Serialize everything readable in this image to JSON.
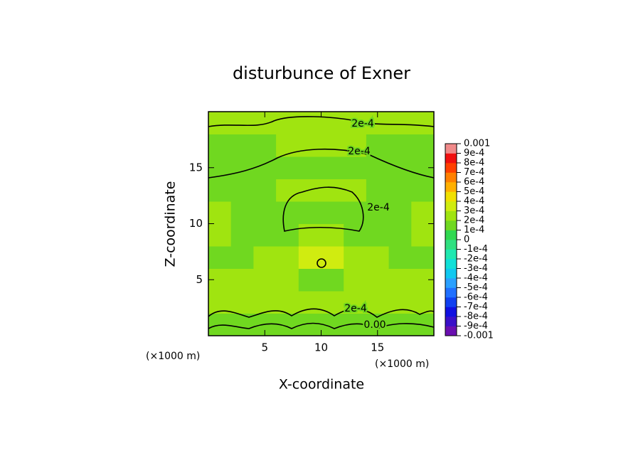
{
  "chart_data": {
    "type": "contour",
    "title": "disturbunce of Exner",
    "xlabel": "X-coordinate",
    "ylabel": "Z-coordinate",
    "xunit": "(×1000 m)",
    "yunit": "(×1000 m)",
    "xlim": [
      0,
      20
    ],
    "ylim": [
      0,
      20
    ],
    "xticks": [
      5,
      10,
      15
    ],
    "yticks": [
      5,
      10,
      15
    ],
    "x": [
      1,
      3,
      5,
      7,
      9,
      11,
      13,
      15,
      17,
      19
    ],
    "y": [
      1,
      3,
      5,
      7,
      9,
      11,
      13,
      15,
      17,
      19
    ],
    "values": [
      [
        0.00012,
        0.00012,
        0.00013,
        0.00012,
        0.00013,
        0.00013,
        0.00012,
        0.00013,
        0.00012,
        0.00012
      ],
      [
        0.00021,
        0.00028,
        0.00028,
        0.00021,
        0.00024,
        0.00024,
        0.00021,
        0.00028,
        0.00028,
        0.00021
      ],
      [
        0.00021,
        0.00021,
        0.00021,
        0.00021,
        0.00019,
        0.00019,
        0.00021,
        0.00021,
        0.00021,
        0.00021
      ],
      [
        0.00016,
        0.00019,
        0.00021,
        0.00026,
        0.00031,
        0.00031,
        0.00026,
        0.00021,
        0.00019,
        0.00016
      ],
      [
        0.00023,
        0.00019,
        0.00019,
        0.00019,
        0.00021,
        0.00021,
        0.00019,
        0.00019,
        0.00019,
        0.00023
      ],
      [
        0.00022,
        0.00018,
        0.00018,
        0.00016,
        0.00016,
        0.00016,
        0.00016,
        0.00018,
        0.00018,
        0.00022
      ],
      [
        0.00017,
        0.00017,
        0.00017,
        0.00021,
        0.00021,
        0.00021,
        0.00021,
        0.00017,
        0.00017,
        0.00017
      ],
      [
        0.00017,
        0.00017,
        0.00018,
        0.00019,
        0.00019,
        0.00019,
        0.00019,
        0.00018,
        0.00017,
        0.00017
      ],
      [
        0.00018,
        0.00018,
        0.00019,
        0.00021,
        0.00021,
        0.00021,
        0.00021,
        0.00019,
        0.00018,
        0.00018
      ],
      [
        0.00022,
        0.00022,
        0.00022,
        0.00022,
        0.00022,
        0.00022,
        0.00022,
        0.00022,
        0.00022,
        0.00022
      ]
    ],
    "contour_labels": [
      "2e-4",
      "2e-4",
      "2e-4",
      "2e-4",
      "0.00"
    ],
    "colorbar": {
      "ticks": [
        -0.001,
        {
          "value": -0.0009,
          "label": "-9e-4"
        },
        {
          "value": -0.0008,
          "label": "-8e-4"
        },
        {
          "value": -0.0007,
          "label": "-7e-4"
        },
        {
          "value": -0.0006,
          "label": "-6e-4"
        },
        {
          "value": -0.0005,
          "label": "-5e-4"
        },
        {
          "value": -0.0004,
          "label": "-4e-4"
        },
        {
          "value": -0.0003,
          "label": "-3e-4"
        },
        {
          "value": -0.0002,
          "label": "-2e-4"
        },
        {
          "value": -0.0001,
          "label": "-1e-4"
        },
        0,
        {
          "value": 0.0001,
          "label": "1e-4"
        },
        {
          "value": 0.0002,
          "label": "2e-4"
        },
        {
          "value": 0.0003,
          "label": "3e-4"
        },
        {
          "value": 0.0004,
          "label": "4e-4"
        },
        {
          "value": 0.0005,
          "label": "5e-4"
        },
        {
          "value": 0.0006,
          "label": "6e-4"
        },
        {
          "value": 0.0007,
          "label": "7e-4"
        },
        {
          "value": 0.0008,
          "label": "8e-4"
        },
        {
          "value": 0.0009,
          "label": "9e-4"
        },
        0.001
      ],
      "colors": [
        "#6a0fb0",
        "#3a10c8",
        "#1010e0",
        "#1040f0",
        "#2070ff",
        "#2aa0ff",
        "#10c8f0",
        "#10e0d8",
        "#20e8b0",
        "#30e080",
        "#30d850",
        "#70d820",
        "#a0e410",
        "#d0ec10",
        "#f0e000",
        "#ffb000",
        "#ff8000",
        "#ff4000",
        "#f01010",
        "#f08a8a"
      ]
    }
  }
}
